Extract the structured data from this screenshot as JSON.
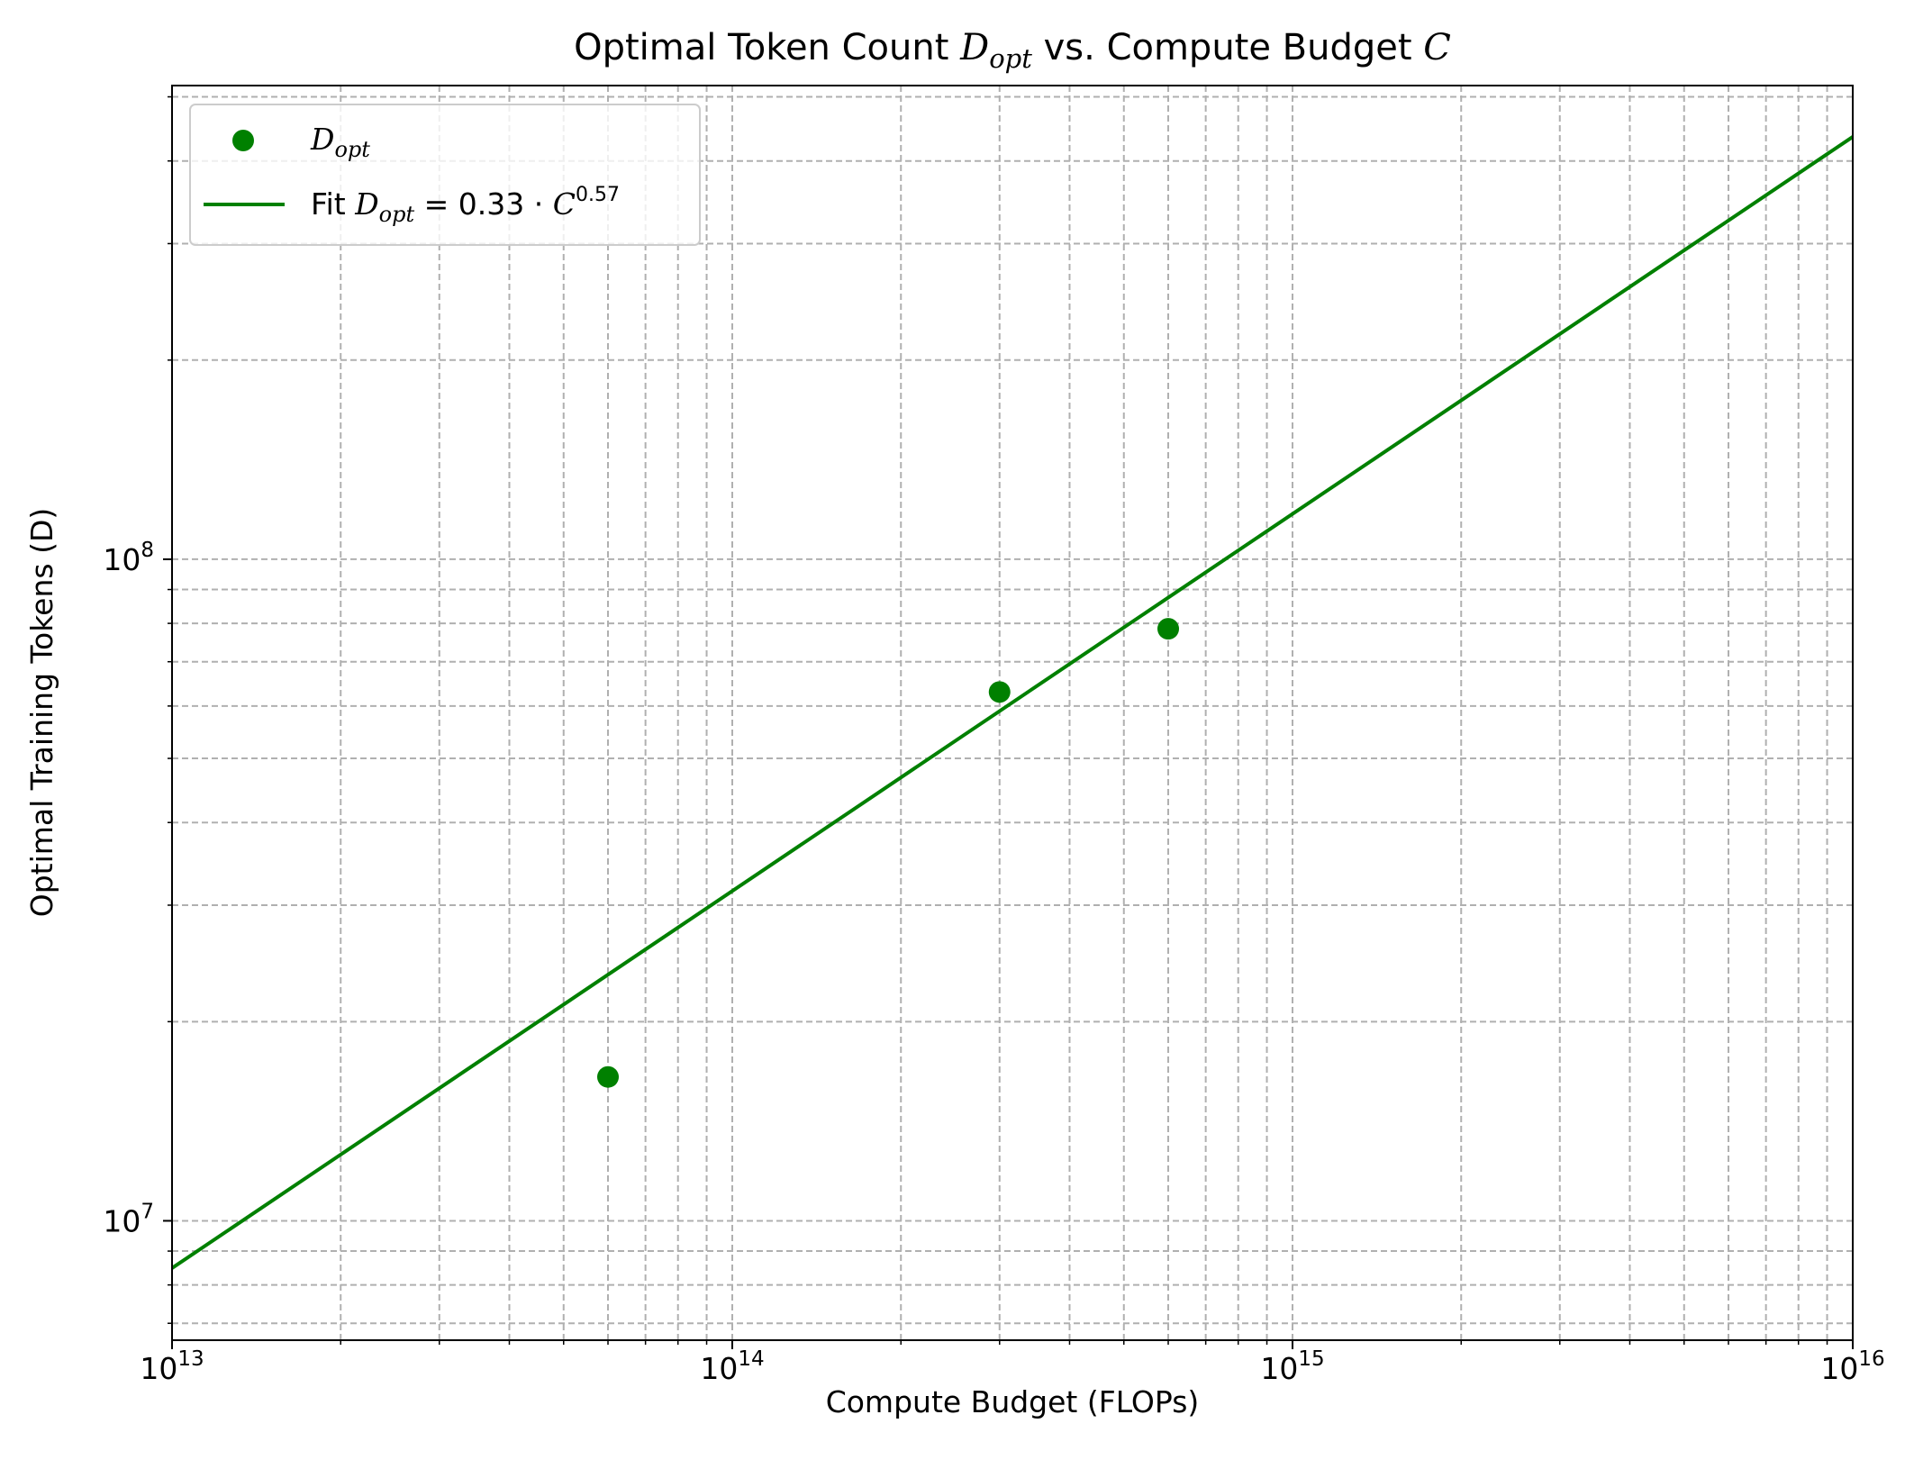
{
  "chart_data": {
    "type": "scatter",
    "title": {
      "prefix": "Optimal Token Count ",
      "symbol": "D",
      "symbol_sub": "opt",
      "middle": " vs. Compute Budget ",
      "var": "C"
    },
    "xlabel": "Compute Budget (FLOPs)",
    "ylabel": "Optimal Training Tokens (D)",
    "x_scale": "log",
    "y_scale": "log",
    "xlim": [
      10000000000000.0,
      1e+16
    ],
    "ylim": [
      6600000.0,
      520000000.0
    ],
    "grid": true,
    "legend_position": "upper-left",
    "x_major_ticks": [
      {
        "value": 10000000000000.0,
        "base": "10",
        "exp": "13"
      },
      {
        "value": 100000000000000.0,
        "base": "10",
        "exp": "14"
      },
      {
        "value": 1000000000000000.0,
        "base": "10",
        "exp": "15"
      },
      {
        "value": 1e+16,
        "base": "10",
        "exp": "16"
      }
    ],
    "y_major_ticks": [
      {
        "value": 10000000.0,
        "base": "10",
        "exp": "7"
      },
      {
        "value": 100000000.0,
        "base": "10",
        "exp": "8"
      }
    ],
    "series": [
      {
        "name": "D",
        "name_sub": "opt",
        "kind": "scatter",
        "color": "#008000",
        "points": [
          {
            "x": 60000000000000.0,
            "y": 16500000.0
          },
          {
            "x": 300000000000000.0,
            "y": 63000000.0
          },
          {
            "x": 600000000000000.0,
            "y": 78500000.0
          }
        ]
      },
      {
        "name_prefix": "Fit ",
        "name": "D",
        "name_sub": "opt",
        "name_eq": " = 0.33 · ",
        "name_var": "C",
        "name_exp": "0.57",
        "kind": "line",
        "color": "#008000",
        "fit": {
          "coefficient": 0.33,
          "exponent": 0.57
        }
      }
    ]
  }
}
